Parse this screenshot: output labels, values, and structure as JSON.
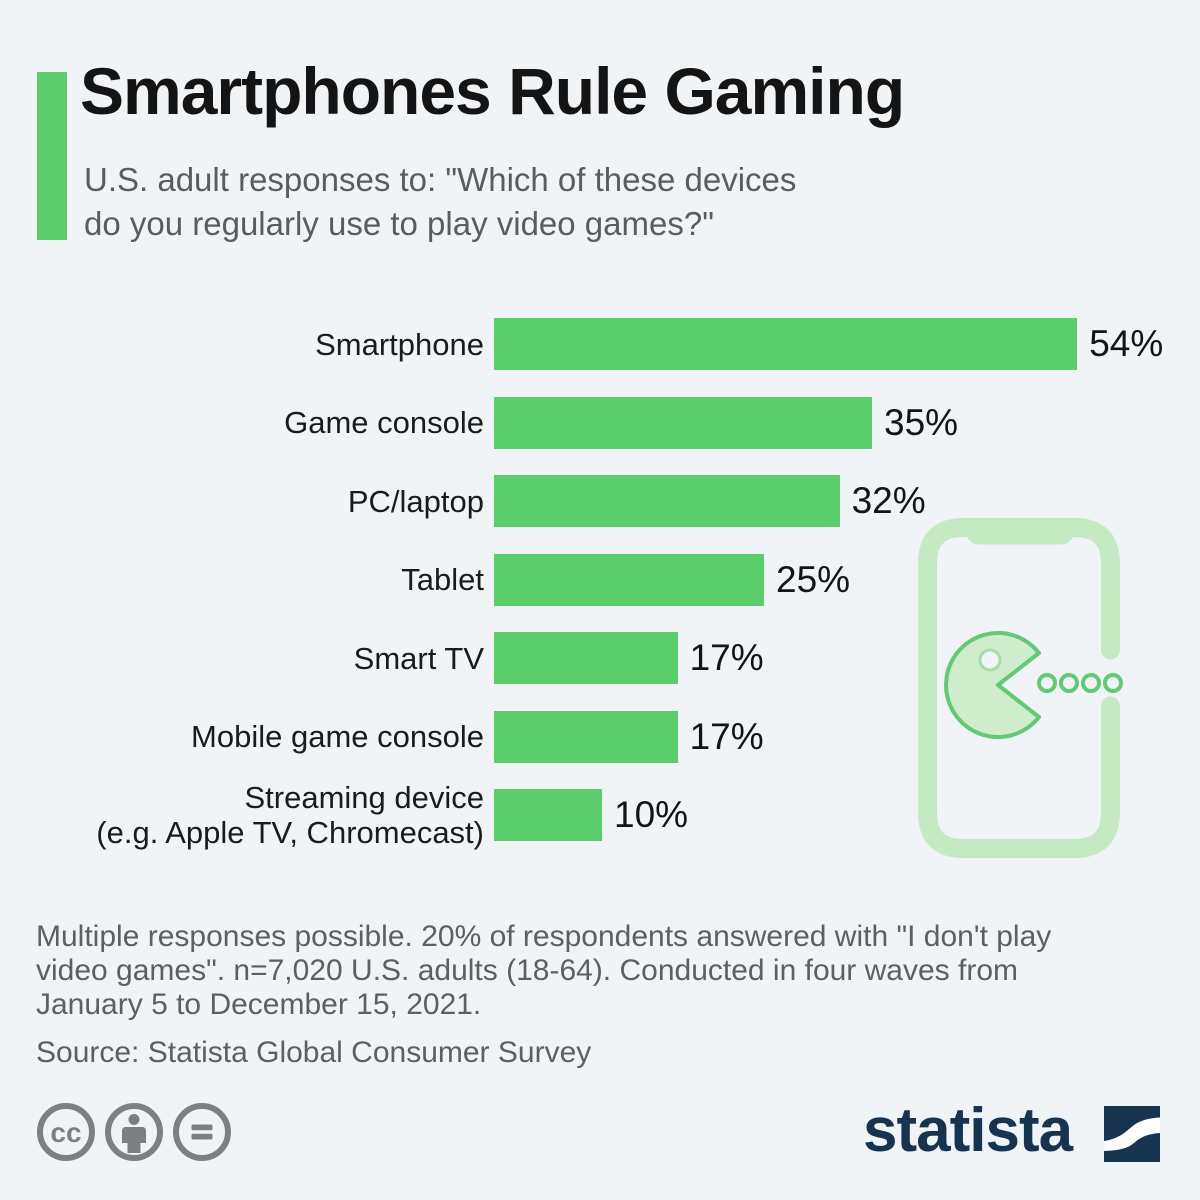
{
  "header": {
    "title": "Smartphones Rule Gaming",
    "subtitle_line1": "U.S. adult responses to: \"Which of these devices",
    "subtitle_line2": "do you regularly use to play video games?\""
  },
  "chart_data": {
    "type": "bar",
    "orientation": "horizontal",
    "unit": "%",
    "xlim": [
      0,
      54
    ],
    "grid": false,
    "legend": "none",
    "bar_color": "#5ccd6c",
    "categories": [
      "Smartphone",
      "Game console",
      "PC/laptop",
      "Tablet",
      "Smart TV",
      "Mobile game console",
      "Streaming device (e.g. Apple TV, Chromecast)"
    ],
    "values": [
      54,
      35,
      32,
      25,
      17,
      17,
      10
    ],
    "rows": [
      {
        "label": "Smartphone",
        "value": 54,
        "value_label": "54%"
      },
      {
        "label": "Game console",
        "value": 35,
        "value_label": "35%"
      },
      {
        "label": "PC/laptop",
        "value": 32,
        "value_label": "32%"
      },
      {
        "label": "Tablet",
        "value": 25,
        "value_label": "25%"
      },
      {
        "label": "Smart TV",
        "value": 17,
        "value_label": "17%"
      },
      {
        "label": "Mobile game console",
        "value": 17,
        "value_label": "17%"
      },
      {
        "label": "Streaming device",
        "label_line2": "(e.g. Apple TV, Chromecast)",
        "value": 10,
        "value_label": "10%"
      }
    ]
  },
  "illustration": {
    "name": "smartphone-pacman-illustration",
    "elements": [
      "smartphone-outline-icon",
      "pacman-icon",
      "pellet-dots-icon"
    ]
  },
  "footer": {
    "note_line1": "Multiple responses possible. 20% of respondents answered with \"I don't play",
    "note_line2": "video games\". n=7,020 U.S. adults (18-64). Conducted in four waves from",
    "note_line3": "January 5 to December 15, 2021.",
    "source": "Source: Statista Global Consumer Survey"
  },
  "license": {
    "cc_label": "CC",
    "icons": [
      "creative-commons-icon",
      "attribution-person-icon",
      "no-derivatives-equals-icon"
    ]
  },
  "branding": {
    "logo_text": "statista"
  },
  "colors": {
    "background": "#f0f4f7",
    "bar_green": "#5ccd6c",
    "accent_green": "#5ccd6c",
    "illustration_light_green": "#c5e9c2",
    "illustration_mid_green": "#63c974",
    "pacman_fill": "#cfeccd",
    "title_text": "#141414",
    "subtitle_text": "#585d61",
    "footer_text": "#5b6064",
    "license_gray": "#7c8084",
    "brand_navy": "#16334f"
  }
}
